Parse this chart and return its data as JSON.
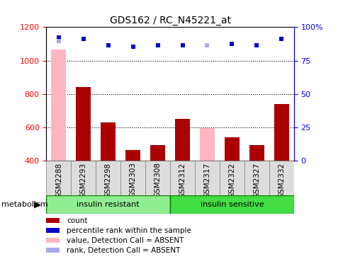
{
  "title": "GDS162 / RC_N45221_at",
  "samples": [
    "GSM2288",
    "GSM2293",
    "GSM2298",
    "GSM2303",
    "GSM2308",
    "GSM2312",
    "GSM2317",
    "GSM2322",
    "GSM2327",
    "GSM2332"
  ],
  "count_values": [
    null,
    840,
    630,
    462,
    492,
    648,
    null,
    540,
    492,
    738
  ],
  "value_absent": [
    1068,
    null,
    null,
    null,
    null,
    null,
    597,
    null,
    null,
    null
  ],
  "rank_y_values": [
    1140,
    1130,
    1090,
    1083,
    1090,
    1090,
    null,
    1100,
    1090,
    1130
  ],
  "rank_y_absent": [
    1115,
    null,
    null,
    null,
    null,
    null,
    1090,
    null,
    null,
    null
  ],
  "ylim_left": [
    400,
    1200
  ],
  "ylim_right": [
    0,
    100
  ],
  "yticks_left": [
    400,
    600,
    800,
    1000,
    1200
  ],
  "yticks_right": [
    0,
    25,
    50,
    75,
    100
  ],
  "right_tick_labels": [
    "0",
    "25",
    "50",
    "75",
    "100%"
  ],
  "dark_red": "#AA0000",
  "light_pink": "#FFB6C1",
  "dark_blue": "#0000CC",
  "light_blue": "#AAAAEE",
  "bg_color": "#DDDDDD",
  "group1_color": "#90EE90",
  "group2_color": "#44DD44",
  "group1_label": "insulin resistant",
  "group2_label": "insulin sensitive",
  "group_label": "metabolism"
}
